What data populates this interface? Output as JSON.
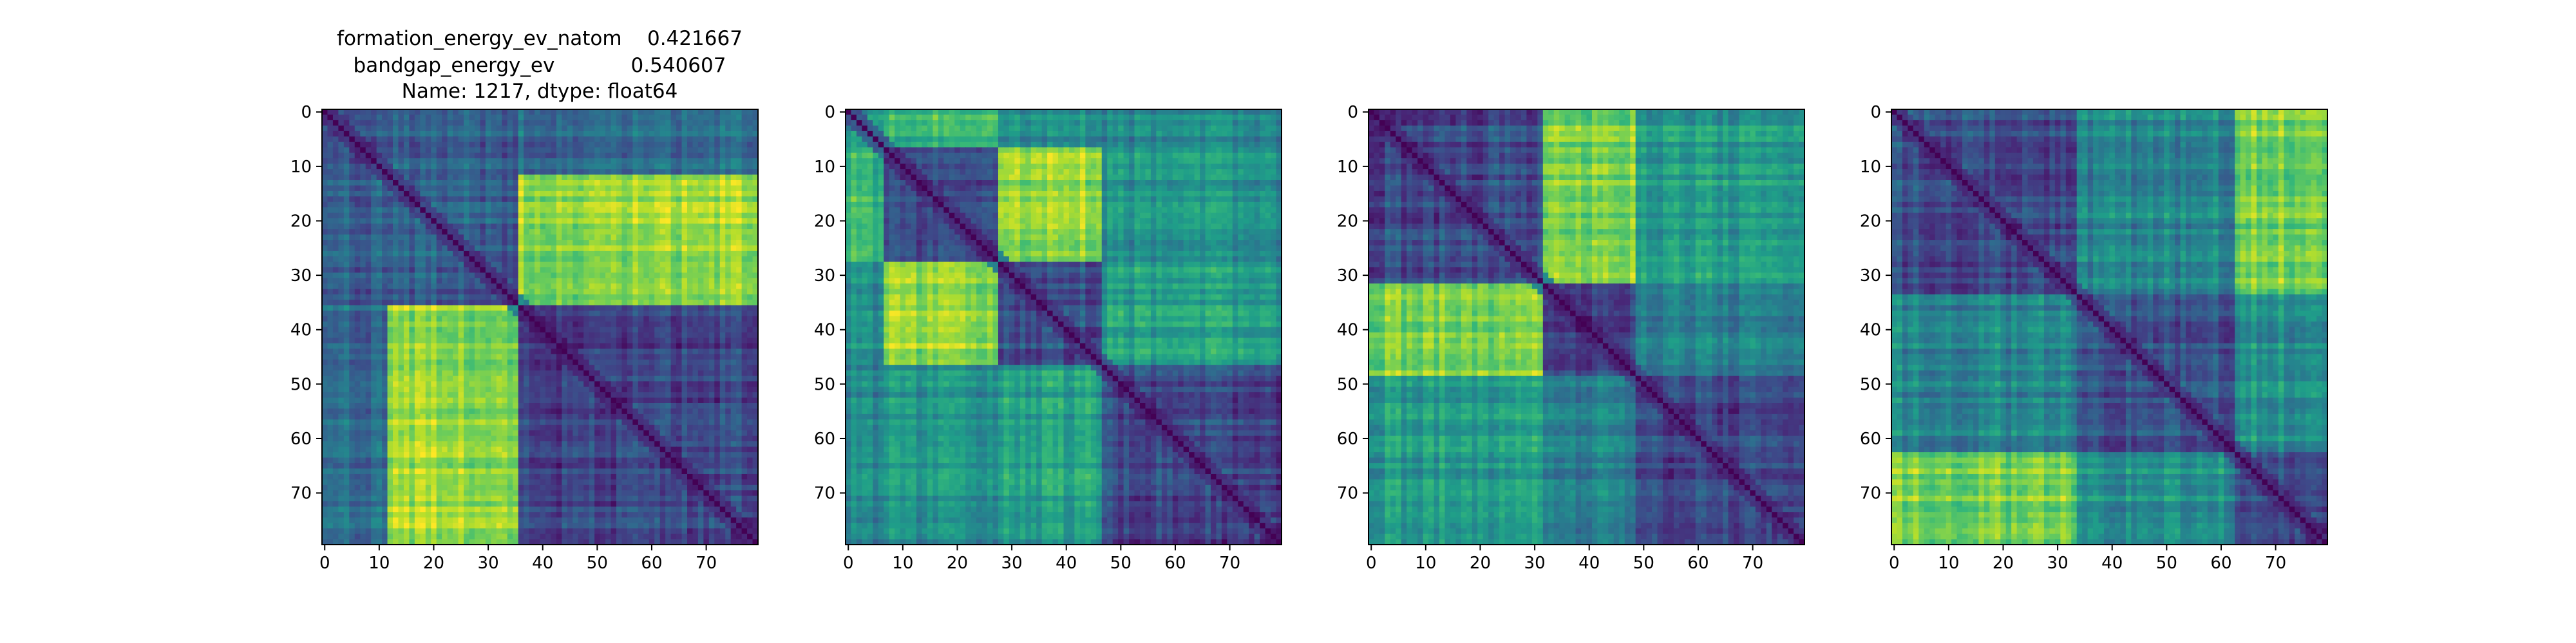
{
  "figure": {
    "title_lines": [
      "formation_energy_ev_natom    0.421667",
      "bandgap_energy_ev            0.540607",
      "Name: 1217, dtype: float64"
    ]
  },
  "chart_data": [
    {
      "type": "heatmap",
      "title": "",
      "xlabel": "",
      "ylabel": "",
      "n": 80,
      "xlim": [
        -0.5,
        79.5
      ],
      "ylim": [
        79.5,
        -0.5
      ],
      "xticks": [
        0,
        10,
        20,
        30,
        40,
        50,
        60,
        70
      ],
      "yticks": [
        0,
        10,
        20,
        30,
        40,
        50,
        60,
        70
      ],
      "colormap": "viridis",
      "grid": false,
      "value_range": [
        0,
        1
      ],
      "groups": [
        {
          "start": 0,
          "end": 12,
          "level": 0.22
        },
        {
          "start": 12,
          "end": 36,
          "level": 0.3
        },
        {
          "start": 36,
          "end": 80,
          "level": 0.2
        }
      ],
      "inter_group": [
        [
          0.0,
          0.3,
          0.35
        ],
        [
          0.3,
          0.0,
          0.85
        ],
        [
          0.35,
          0.85,
          0.0
        ]
      ]
    },
    {
      "type": "heatmap",
      "title": "",
      "xlabel": "",
      "ylabel": "",
      "n": 80,
      "xlim": [
        -0.5,
        79.5
      ],
      "ylim": [
        79.5,
        -0.5
      ],
      "xticks": [
        0,
        10,
        20,
        30,
        40,
        50,
        60,
        70
      ],
      "yticks": [
        0,
        10,
        20,
        30,
        40,
        50,
        60,
        70
      ],
      "colormap": "viridis",
      "grid": false,
      "value_range": [
        0,
        1
      ],
      "groups": [
        {
          "start": 0,
          "end": 7,
          "level": 0.5
        },
        {
          "start": 7,
          "end": 28,
          "level": 0.2
        },
        {
          "start": 28,
          "end": 47,
          "level": 0.25
        },
        {
          "start": 47,
          "end": 80,
          "level": 0.2
        }
      ],
      "inter_group": [
        [
          0.0,
          0.65,
          0.5,
          0.45
        ],
        [
          0.65,
          0.0,
          0.85,
          0.5
        ],
        [
          0.5,
          0.85,
          0.0,
          0.55
        ],
        [
          0.45,
          0.5,
          0.55,
          0.0
        ]
      ]
    },
    {
      "type": "heatmap",
      "title": "",
      "xlabel": "",
      "ylabel": "",
      "n": 80,
      "xlim": [
        -0.5,
        79.5
      ],
      "ylim": [
        79.5,
        -0.5
      ],
      "xticks": [
        0,
        10,
        20,
        30,
        40,
        50,
        60,
        70
      ],
      "yticks": [
        0,
        10,
        20,
        30,
        40,
        50,
        60,
        70
      ],
      "colormap": "viridis",
      "grid": false,
      "value_range": [
        0,
        1
      ],
      "groups": [
        {
          "start": 0,
          "end": 32,
          "level": 0.22
        },
        {
          "start": 32,
          "end": 49,
          "level": 0.2
        },
        {
          "start": 49,
          "end": 80,
          "level": 0.22
        }
      ],
      "inter_group": [
        [
          0.0,
          0.8,
          0.55
        ],
        [
          0.8,
          0.0,
          0.45
        ],
        [
          0.55,
          0.45,
          0.0
        ]
      ]
    },
    {
      "type": "heatmap",
      "title": "",
      "xlabel": "",
      "ylabel": "",
      "n": 80,
      "xlim": [
        -0.5,
        79.5
      ],
      "ylim": [
        79.5,
        -0.5
      ],
      "xticks": [
        0,
        10,
        20,
        30,
        40,
        50,
        60,
        70
      ],
      "yticks": [
        0,
        10,
        20,
        30,
        40,
        50,
        60,
        70
      ],
      "colormap": "viridis",
      "grid": false,
      "value_range": [
        0,
        1
      ],
      "groups": [
        {
          "start": 0,
          "end": 34,
          "level": 0.22
        },
        {
          "start": 34,
          "end": 63,
          "level": 0.25
        },
        {
          "start": 63,
          "end": 80,
          "level": 0.22
        }
      ],
      "inter_group": [
        [
          0.0,
          0.45,
          0.8
        ],
        [
          0.45,
          0.0,
          0.5
        ],
        [
          0.8,
          0.5,
          0.0
        ]
      ]
    }
  ]
}
